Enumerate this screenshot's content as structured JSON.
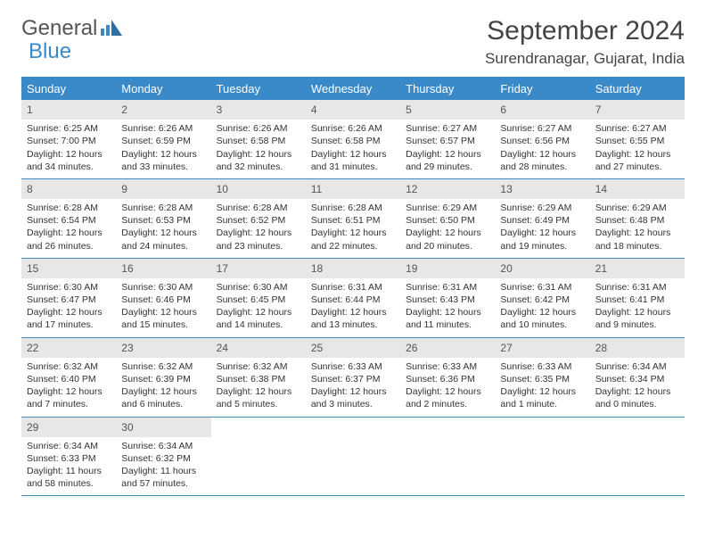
{
  "brand": {
    "part1": "General",
    "part2": "Blue"
  },
  "title": "September 2024",
  "location": "Surendranagar, Gujarat, India",
  "colors": {
    "accent": "#3a8ac9",
    "header_bg": "#3a8ac9",
    "daynum_bg": "#e7e7e7",
    "text": "#333333",
    "background": "#ffffff"
  },
  "daynames": [
    "Sunday",
    "Monday",
    "Tuesday",
    "Wednesday",
    "Thursday",
    "Friday",
    "Saturday"
  ],
  "weeks": [
    [
      {
        "n": "1",
        "sr": "Sunrise: 6:25 AM",
        "ss": "Sunset: 7:00 PM",
        "d1": "Daylight: 12 hours",
        "d2": "and 34 minutes."
      },
      {
        "n": "2",
        "sr": "Sunrise: 6:26 AM",
        "ss": "Sunset: 6:59 PM",
        "d1": "Daylight: 12 hours",
        "d2": "and 33 minutes."
      },
      {
        "n": "3",
        "sr": "Sunrise: 6:26 AM",
        "ss": "Sunset: 6:58 PM",
        "d1": "Daylight: 12 hours",
        "d2": "and 32 minutes."
      },
      {
        "n": "4",
        "sr": "Sunrise: 6:26 AM",
        "ss": "Sunset: 6:58 PM",
        "d1": "Daylight: 12 hours",
        "d2": "and 31 minutes."
      },
      {
        "n": "5",
        "sr": "Sunrise: 6:27 AM",
        "ss": "Sunset: 6:57 PM",
        "d1": "Daylight: 12 hours",
        "d2": "and 29 minutes."
      },
      {
        "n": "6",
        "sr": "Sunrise: 6:27 AM",
        "ss": "Sunset: 6:56 PM",
        "d1": "Daylight: 12 hours",
        "d2": "and 28 minutes."
      },
      {
        "n": "7",
        "sr": "Sunrise: 6:27 AM",
        "ss": "Sunset: 6:55 PM",
        "d1": "Daylight: 12 hours",
        "d2": "and 27 minutes."
      }
    ],
    [
      {
        "n": "8",
        "sr": "Sunrise: 6:28 AM",
        "ss": "Sunset: 6:54 PM",
        "d1": "Daylight: 12 hours",
        "d2": "and 26 minutes."
      },
      {
        "n": "9",
        "sr": "Sunrise: 6:28 AM",
        "ss": "Sunset: 6:53 PM",
        "d1": "Daylight: 12 hours",
        "d2": "and 24 minutes."
      },
      {
        "n": "10",
        "sr": "Sunrise: 6:28 AM",
        "ss": "Sunset: 6:52 PM",
        "d1": "Daylight: 12 hours",
        "d2": "and 23 minutes."
      },
      {
        "n": "11",
        "sr": "Sunrise: 6:28 AM",
        "ss": "Sunset: 6:51 PM",
        "d1": "Daylight: 12 hours",
        "d2": "and 22 minutes."
      },
      {
        "n": "12",
        "sr": "Sunrise: 6:29 AM",
        "ss": "Sunset: 6:50 PM",
        "d1": "Daylight: 12 hours",
        "d2": "and 20 minutes."
      },
      {
        "n": "13",
        "sr": "Sunrise: 6:29 AM",
        "ss": "Sunset: 6:49 PM",
        "d1": "Daylight: 12 hours",
        "d2": "and 19 minutes."
      },
      {
        "n": "14",
        "sr": "Sunrise: 6:29 AM",
        "ss": "Sunset: 6:48 PM",
        "d1": "Daylight: 12 hours",
        "d2": "and 18 minutes."
      }
    ],
    [
      {
        "n": "15",
        "sr": "Sunrise: 6:30 AM",
        "ss": "Sunset: 6:47 PM",
        "d1": "Daylight: 12 hours",
        "d2": "and 17 minutes."
      },
      {
        "n": "16",
        "sr": "Sunrise: 6:30 AM",
        "ss": "Sunset: 6:46 PM",
        "d1": "Daylight: 12 hours",
        "d2": "and 15 minutes."
      },
      {
        "n": "17",
        "sr": "Sunrise: 6:30 AM",
        "ss": "Sunset: 6:45 PM",
        "d1": "Daylight: 12 hours",
        "d2": "and 14 minutes."
      },
      {
        "n": "18",
        "sr": "Sunrise: 6:31 AM",
        "ss": "Sunset: 6:44 PM",
        "d1": "Daylight: 12 hours",
        "d2": "and 13 minutes."
      },
      {
        "n": "19",
        "sr": "Sunrise: 6:31 AM",
        "ss": "Sunset: 6:43 PM",
        "d1": "Daylight: 12 hours",
        "d2": "and 11 minutes."
      },
      {
        "n": "20",
        "sr": "Sunrise: 6:31 AM",
        "ss": "Sunset: 6:42 PM",
        "d1": "Daylight: 12 hours",
        "d2": "and 10 minutes."
      },
      {
        "n": "21",
        "sr": "Sunrise: 6:31 AM",
        "ss": "Sunset: 6:41 PM",
        "d1": "Daylight: 12 hours",
        "d2": "and 9 minutes."
      }
    ],
    [
      {
        "n": "22",
        "sr": "Sunrise: 6:32 AM",
        "ss": "Sunset: 6:40 PM",
        "d1": "Daylight: 12 hours",
        "d2": "and 7 minutes."
      },
      {
        "n": "23",
        "sr": "Sunrise: 6:32 AM",
        "ss": "Sunset: 6:39 PM",
        "d1": "Daylight: 12 hours",
        "d2": "and 6 minutes."
      },
      {
        "n": "24",
        "sr": "Sunrise: 6:32 AM",
        "ss": "Sunset: 6:38 PM",
        "d1": "Daylight: 12 hours",
        "d2": "and 5 minutes."
      },
      {
        "n": "25",
        "sr": "Sunrise: 6:33 AM",
        "ss": "Sunset: 6:37 PM",
        "d1": "Daylight: 12 hours",
        "d2": "and 3 minutes."
      },
      {
        "n": "26",
        "sr": "Sunrise: 6:33 AM",
        "ss": "Sunset: 6:36 PM",
        "d1": "Daylight: 12 hours",
        "d2": "and 2 minutes."
      },
      {
        "n": "27",
        "sr": "Sunrise: 6:33 AM",
        "ss": "Sunset: 6:35 PM",
        "d1": "Daylight: 12 hours",
        "d2": "and 1 minute."
      },
      {
        "n": "28",
        "sr": "Sunrise: 6:34 AM",
        "ss": "Sunset: 6:34 PM",
        "d1": "Daylight: 12 hours",
        "d2": "and 0 minutes."
      }
    ],
    [
      {
        "n": "29",
        "sr": "Sunrise: 6:34 AM",
        "ss": "Sunset: 6:33 PM",
        "d1": "Daylight: 11 hours",
        "d2": "and 58 minutes."
      },
      {
        "n": "30",
        "sr": "Sunrise: 6:34 AM",
        "ss": "Sunset: 6:32 PM",
        "d1": "Daylight: 11 hours",
        "d2": "and 57 minutes."
      },
      {
        "empty": true
      },
      {
        "empty": true
      },
      {
        "empty": true
      },
      {
        "empty": true
      },
      {
        "empty": true
      }
    ]
  ]
}
